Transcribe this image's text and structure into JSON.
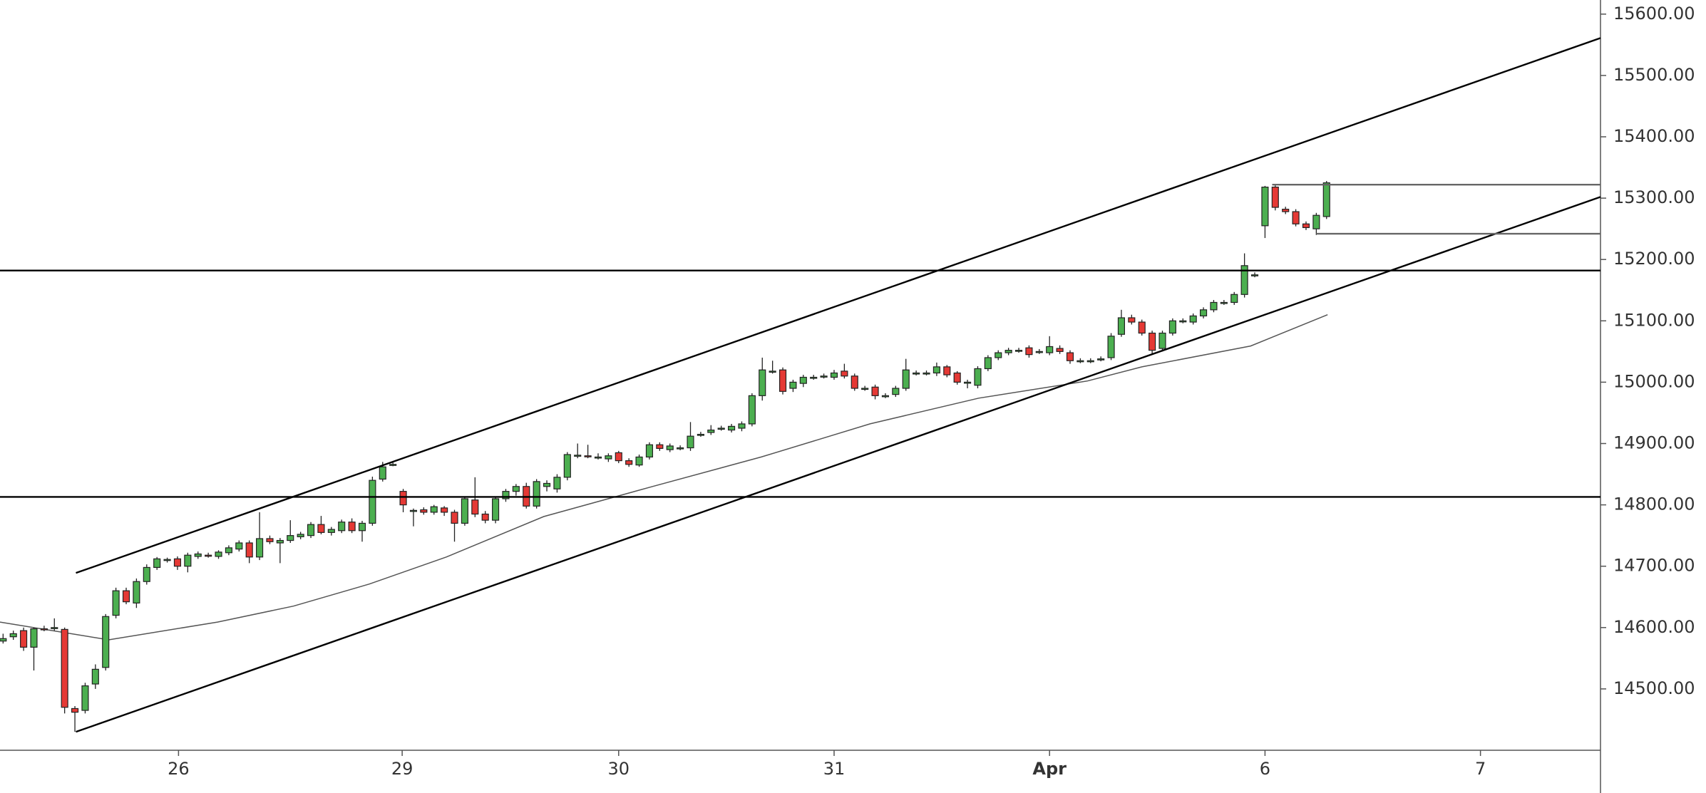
{
  "chart_data": {
    "type": "candlestick",
    "up_color": "#4caf50",
    "down_color": "#e53935",
    "ma_color": "#555555",
    "xlim": [
      -0.3,
      155.7
    ],
    "ylim": [
      14400,
      15623
    ],
    "xticks": [
      {
        "value": 17.1,
        "label": "26"
      },
      {
        "value": 38.9,
        "label": "29"
      },
      {
        "value": 60.0,
        "label": "30"
      },
      {
        "value": 81.0,
        "label": "31"
      },
      {
        "value": 102.0,
        "label": "Apr"
      },
      {
        "value": 123.0,
        "label": "6"
      },
      {
        "value": 144.0,
        "label": "7"
      }
    ],
    "yticks": [
      {
        "value": 14500,
        "label": "14500.00"
      },
      {
        "value": 14600,
        "label": "14600.00"
      },
      {
        "value": 14700,
        "label": "14700.00"
      },
      {
        "value": 14800,
        "label": "14800.00"
      },
      {
        "value": 14900,
        "label": "14900.00"
      },
      {
        "value": 15000,
        "label": "15000.00"
      },
      {
        "value": 15100,
        "label": "15100.00"
      },
      {
        "value": 15200,
        "label": "15200.00"
      },
      {
        "value": 15300,
        "label": "15300.00"
      },
      {
        "value": 15400,
        "label": "15400.00"
      },
      {
        "value": 15500,
        "label": "15500.00"
      },
      {
        "value": 15600,
        "label": "15600.00"
      }
    ],
    "candles": [
      [
        14578,
        14590,
        14574,
        14582
      ],
      [
        14585,
        14595,
        14580,
        14590
      ],
      [
        14595,
        14600,
        14562,
        14568
      ],
      [
        14568,
        14600,
        14530,
        14598
      ],
      [
        14598,
        14603,
        14594,
        14597
      ],
      [
        14599,
        14615,
        14595,
        14600
      ],
      [
        14597,
        14600,
        14460,
        14470
      ],
      [
        14468,
        14472,
        14430,
        14462
      ],
      [
        14465,
        14510,
        14460,
        14505
      ],
      [
        14508,
        14540,
        14500,
        14532
      ],
      [
        14535,
        14622,
        14530,
        14618
      ],
      [
        14620,
        14665,
        14615,
        14660
      ],
      [
        14660,
        14665,
        14638,
        14642
      ],
      [
        14640,
        14680,
        14632,
        14675
      ],
      [
        14675,
        14703,
        14670,
        14698
      ],
      [
        14698,
        14715,
        14694,
        14712
      ],
      [
        14710,
        14714,
        14706,
        14711
      ],
      [
        14712,
        14716,
        14694,
        14700
      ],
      [
        14700,
        14722,
        14690,
        14718
      ],
      [
        14716,
        14724,
        14712,
        14720
      ],
      [
        14718,
        14722,
        14714,
        14717
      ],
      [
        14716,
        14726,
        14712,
        14723
      ],
      [
        14722,
        14734,
        14718,
        14730
      ],
      [
        14728,
        14742,
        14724,
        14738
      ],
      [
        14738,
        14742,
        14705,
        14715
      ],
      [
        14715,
        14788,
        14710,
        14745
      ],
      [
        14745,
        14750,
        14736,
        14740
      ],
      [
        14738,
        14746,
        14705,
        14742
      ],
      [
        14742,
        14775,
        14738,
        14750
      ],
      [
        14748,
        14756,
        14744,
        14752
      ],
      [
        14750,
        14772,
        14746,
        14768
      ],
      [
        14768,
        14782,
        14752,
        14755
      ],
      [
        14755,
        14764,
        14750,
        14760
      ],
      [
        14758,
        14776,
        14754,
        14772
      ],
      [
        14772,
        14778,
        14754,
        14758
      ],
      [
        14758,
        14774,
        14740,
        14770
      ],
      [
        14770,
        14846,
        14766,
        14840
      ],
      [
        14842,
        14870,
        14838,
        14862
      ],
      [
        14866,
        14869,
        14863,
        14866
      ],
      [
        14822,
        14826,
        14788,
        14800
      ],
      [
        14790,
        14794,
        14765,
        14791
      ],
      [
        14792,
        14796,
        14784,
        14788
      ],
      [
        14788,
        14800,
        14784,
        14797
      ],
      [
        14795,
        14798,
        14782,
        14788
      ],
      [
        14788,
        14792,
        14740,
        14770
      ],
      [
        14770,
        14814,
        14766,
        14810
      ],
      [
        14808,
        14845,
        14780,
        14785
      ],
      [
        14785,
        14790,
        14770,
        14775
      ],
      [
        14775,
        14814,
        14770,
        14810
      ],
      [
        14810,
        14826,
        14805,
        14822
      ],
      [
        14822,
        14834,
        14815,
        14830
      ],
      [
        14830,
        14836,
        14794,
        14798
      ],
      [
        14798,
        14842,
        14794,
        14838
      ],
      [
        14830,
        14840,
        14822,
        14835
      ],
      [
        14826,
        14850,
        14820,
        14845
      ],
      [
        14845,
        14886,
        14840,
        14882
      ],
      [
        14880,
        14900,
        14876,
        14881
      ],
      [
        14880,
        14898,
        14876,
        14879
      ],
      [
        14878,
        14884,
        14874,
        14878
      ],
      [
        14875,
        14884,
        14870,
        14880
      ],
      [
        14885,
        14888,
        14868,
        14872
      ],
      [
        14872,
        14876,
        14862,
        14866
      ],
      [
        14865,
        14882,
        14862,
        14878
      ],
      [
        14878,
        14902,
        14874,
        14898
      ],
      [
        14898,
        14902,
        14888,
        14892
      ],
      [
        14890,
        14900,
        14886,
        14896
      ],
      [
        14893,
        14897,
        14889,
        14893
      ],
      [
        14893,
        14935,
        14888,
        14912
      ],
      [
        14915,
        14919,
        14911,
        14915
      ],
      [
        14918,
        14930,
        14914,
        14922
      ],
      [
        14925,
        14929,
        14921,
        14925
      ],
      [
        14922,
        14932,
        14918,
        14928
      ],
      [
        14925,
        14936,
        14920,
        14932
      ],
      [
        14932,
        14982,
        14928,
        14978
      ],
      [
        14978,
        15040,
        14970,
        15020
      ],
      [
        15018,
        15035,
        15014,
        15018
      ],
      [
        15020,
        15024,
        14980,
        14985
      ],
      [
        14990,
        15004,
        14984,
        15000
      ],
      [
        14998,
        15012,
        14992,
        15008
      ],
      [
        15008,
        15012,
        15004,
        15008
      ],
      [
        15010,
        15014,
        15006,
        15010
      ],
      [
        15008,
        15020,
        15004,
        15015
      ],
      [
        15018,
        15030,
        15006,
        15010
      ],
      [
        15010,
        15014,
        14986,
        14990
      ],
      [
        14990,
        14994,
        14986,
        14990
      ],
      [
        14992,
        14996,
        14972,
        14978
      ],
      [
        14978,
        14982,
        14974,
        14978
      ],
      [
        14980,
        14994,
        14976,
        14990
      ],
      [
        14990,
        15038,
        14986,
        15020
      ],
      [
        15015,
        15019,
        15011,
        15015
      ],
      [
        15015,
        15019,
        15011,
        15015
      ],
      [
        15015,
        15032,
        15010,
        15025
      ],
      [
        15025,
        15028,
        15008,
        15012
      ],
      [
        15015,
        15018,
        14996,
        15000
      ],
      [
        15000,
        15004,
        14990,
        15000
      ],
      [
        14995,
        15026,
        14990,
        15022
      ],
      [
        15022,
        15044,
        15018,
        15040
      ],
      [
        15040,
        15052,
        15036,
        15048
      ],
      [
        15048,
        15056,
        15044,
        15052
      ],
      [
        15052,
        15056,
        15048,
        15052
      ],
      [
        15056,
        15060,
        15040,
        15045
      ],
      [
        15050,
        15054,
        15046,
        15050
      ],
      [
        15048,
        15075,
        15044,
        15058
      ],
      [
        15055,
        15060,
        15046,
        15050
      ],
      [
        15048,
        15052,
        15030,
        15035
      ],
      [
        15035,
        15039,
        15031,
        15035
      ],
      [
        15035,
        15039,
        15031,
        15035
      ],
      [
        15038,
        15042,
        15034,
        15038
      ],
      [
        15040,
        15080,
        15036,
        15075
      ],
      [
        15078,
        15118,
        15074,
        15105
      ],
      [
        15105,
        15110,
        15094,
        15098
      ],
      [
        15098,
        15102,
        15076,
        15080
      ],
      [
        15080,
        15084,
        15045,
        15052
      ],
      [
        15055,
        15084,
        15050,
        15080
      ],
      [
        15080,
        15104,
        15076,
        15100
      ],
      [
        15100,
        15104,
        15096,
        15100
      ],
      [
        15098,
        15112,
        15094,
        15108
      ],
      [
        15108,
        15122,
        15104,
        15118
      ],
      [
        15118,
        15134,
        15114,
        15130
      ],
      [
        15130,
        15134,
        15126,
        15130
      ],
      [
        15130,
        15147,
        15126,
        15143
      ],
      [
        15143,
        15210,
        15138,
        15190
      ],
      [
        15175,
        15179,
        15171,
        15175
      ],
      [
        15255,
        15320,
        15235,
        15318
      ],
      [
        15318,
        15322,
        15280,
        15285
      ],
      [
        15282,
        15286,
        15274,
        15278
      ],
      [
        15278,
        15282,
        15254,
        15258
      ],
      [
        15258,
        15262,
        15248,
        15252
      ],
      [
        15250,
        15276,
        15240,
        15272
      ],
      [
        15270,
        15328,
        15266,
        15325
      ]
    ],
    "ma": {
      "x": [
        -0.3,
        10.3,
        20.9,
        28.3,
        35.7,
        43.2,
        52.7,
        63.3,
        73.9,
        84.5,
        95.1,
        105.7,
        111.0,
        121.6,
        129.1
      ],
      "y": [
        14609,
        14580,
        14609,
        14635,
        14671,
        14715,
        14781,
        14830,
        14878,
        14932,
        14974,
        15002,
        15025,
        15059,
        15110
      ]
    },
    "lines": [
      {
        "color": "#000000",
        "x": [
          7.1,
          155.7
        ],
        "y": [
          14689,
          15561
        ]
      },
      {
        "color": "#000000",
        "x": [
          7.1,
          155.7
        ],
        "y": [
          14430,
          15302
        ]
      },
      {
        "color": "#000000",
        "x": [
          -0.3,
          155.7
        ],
        "y": [
          15182,
          15182
        ]
      },
      {
        "color": "#000000",
        "x": [
          -0.3,
          155.7
        ],
        "y": [
          14813,
          14813
        ]
      },
      {
        "color": "#666666",
        "x": [
          123.7,
          155.7
        ],
        "y": [
          15322,
          15322
        ]
      },
      {
        "color": "#666666",
        "x": [
          128.0,
          155.7
        ],
        "y": [
          15242,
          15242
        ]
      }
    ]
  }
}
